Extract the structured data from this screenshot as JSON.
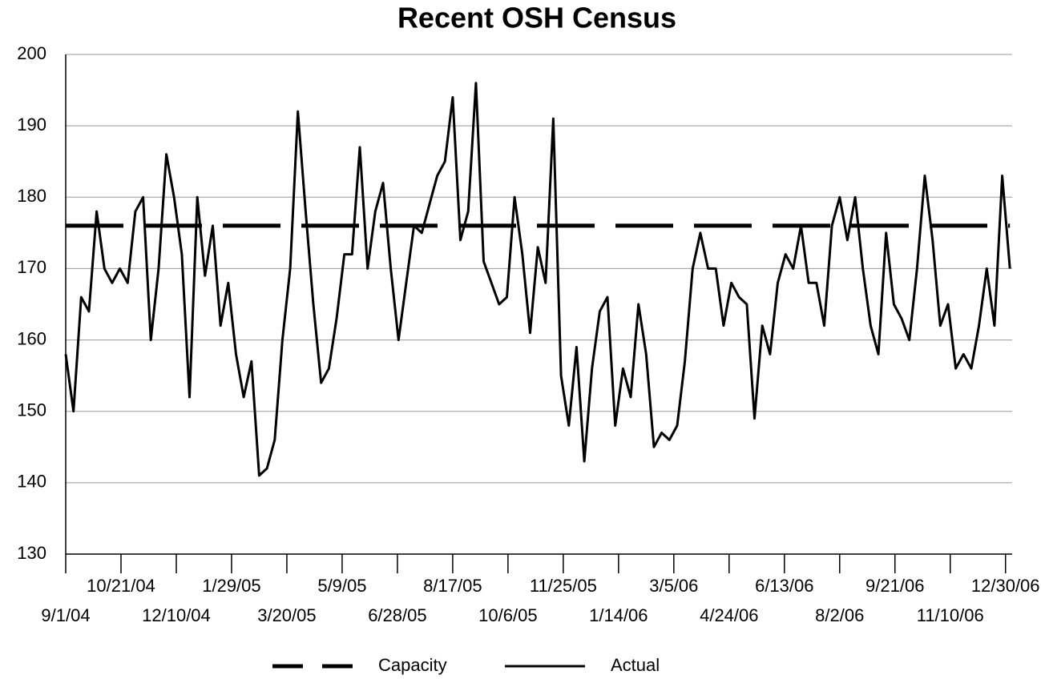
{
  "chart_data": {
    "type": "line",
    "title": "Recent OSH Census",
    "x": [
      "9/1/04",
      "9/8/04",
      "9/15/04",
      "9/22/04",
      "9/29/04",
      "10/6/04",
      "10/13/04",
      "10/20/04",
      "10/27/04",
      "11/3/04",
      "11/10/04",
      "11/17/04",
      "11/24/04",
      "12/1/04",
      "12/8/04",
      "12/15/04",
      "12/22/04",
      "12/29/04",
      "1/5/05",
      "1/12/05",
      "1/19/05",
      "1/26/05",
      "2/2/05",
      "2/9/05",
      "2/16/05",
      "2/23/05",
      "3/2/05",
      "3/9/05",
      "3/16/05",
      "3/23/05",
      "3/30/05",
      "4/6/05",
      "4/13/05",
      "4/20/05",
      "4/27/05",
      "5/4/05",
      "5/11/05",
      "5/18/05",
      "5/25/05",
      "6/1/05",
      "6/8/05",
      "6/15/05",
      "6/22/05",
      "6/29/05",
      "7/6/05",
      "7/13/05",
      "7/20/05",
      "7/27/05",
      "8/3/05",
      "8/10/05",
      "8/17/05",
      "8/24/05",
      "8/31/05",
      "9/7/05",
      "9/14/05",
      "9/21/05",
      "9/28/05",
      "10/5/05",
      "10/12/05",
      "10/19/05",
      "10/26/05",
      "11/2/05",
      "11/9/05",
      "11/16/05",
      "11/23/05",
      "11/30/05",
      "12/7/05",
      "12/14/05",
      "12/21/05",
      "12/28/05",
      "1/4/06",
      "1/11/06",
      "1/18/06",
      "1/25/06",
      "2/1/06",
      "2/8/06",
      "2/15/06",
      "2/22/06",
      "3/1/06",
      "3/8/06",
      "3/15/06",
      "3/22/06",
      "3/29/06",
      "4/5/06",
      "4/12/06",
      "4/19/06",
      "4/26/06",
      "5/3/06",
      "5/10/06",
      "5/17/06",
      "5/24/06",
      "5/31/06",
      "6/7/06",
      "6/14/06",
      "6/21/06",
      "6/28/06",
      "7/5/06",
      "7/12/06",
      "7/19/06",
      "7/26/06",
      "8/2/06",
      "8/9/06",
      "8/16/06",
      "8/23/06",
      "8/30/06",
      "9/6/06",
      "9/13/06",
      "9/20/06",
      "9/27/06",
      "10/4/06",
      "10/11/06",
      "10/18/06",
      "10/25/06",
      "11/1/06",
      "11/8/06",
      "11/15/06",
      "11/22/06",
      "11/29/06",
      "12/6/06",
      "12/13/06",
      "12/20/06",
      "12/27/06",
      "1/3/07"
    ],
    "series": [
      {
        "name": "Capacity",
        "color": "#000000",
        "dash": "dashed",
        "values": [
          176,
          176,
          176,
          176,
          176,
          176,
          176,
          176,
          176,
          176,
          176,
          176,
          176,
          176,
          176,
          176,
          176,
          176,
          176,
          176,
          176,
          176,
          176,
          176,
          176,
          176,
          176,
          176,
          176,
          176,
          176,
          176,
          176,
          176,
          176,
          176,
          176,
          176,
          176,
          176,
          176,
          176,
          176,
          176,
          176,
          176,
          176,
          176,
          176,
          176,
          176,
          176,
          176,
          176,
          176,
          176,
          176,
          176,
          176,
          176,
          176,
          176,
          176,
          176,
          176,
          176,
          176,
          176,
          176,
          176,
          176,
          176,
          176,
          176,
          176,
          176,
          176,
          176,
          176,
          176,
          176,
          176,
          176,
          176,
          176,
          176,
          176,
          176,
          176,
          176,
          176,
          176,
          176,
          176,
          176,
          176,
          176,
          176,
          176,
          176,
          176,
          176,
          176,
          176,
          176,
          176,
          176,
          176,
          176,
          176,
          176,
          176,
          176,
          176,
          176,
          176,
          176,
          176,
          176,
          176,
          176,
          176,
          176
        ]
      },
      {
        "name": "Actual",
        "color": "#000000",
        "dash": "solid",
        "values": [
          158,
          150,
          166,
          164,
          178,
          170,
          168,
          170,
          168,
          178,
          180,
          160,
          170,
          186,
          180,
          172,
          152,
          180,
          169,
          176,
          162,
          168,
          158,
          152,
          157,
          141,
          142,
          146,
          160,
          170,
          192,
          178,
          165,
          154,
          156,
          163,
          172,
          172,
          187,
          170,
          178,
          182,
          170,
          160,
          168,
          176,
          175,
          179,
          183,
          185,
          194,
          174,
          178,
          196,
          171,
          168,
          165,
          166,
          180,
          172,
          161,
          173,
          168,
          191,
          155,
          148,
          159,
          143,
          156,
          164,
          166,
          148,
          156,
          152,
          165,
          158,
          145,
          147,
          146,
          148,
          157,
          170,
          175,
          170,
          170,
          162,
          168,
          166,
          165,
          149,
          162,
          158,
          168,
          172,
          170,
          176,
          168,
          168,
          162,
          176,
          180,
          174,
          180,
          170,
          162,
          158,
          175,
          165,
          163,
          160,
          170,
          183,
          174,
          162,
          165,
          156,
          158,
          156,
          162,
          170,
          162,
          183,
          170
        ]
      }
    ],
    "xlim": [
      "9/1/04",
      "1/5/07"
    ],
    "xticks": [
      "9/1/04",
      "10/21/04",
      "12/10/04",
      "1/29/05",
      "3/20/05",
      "5/9/05",
      "6/28/05",
      "8/17/05",
      "10/6/05",
      "11/25/05",
      "1/14/06",
      "3/5/06",
      "4/24/06",
      "6/13/06",
      "8/2/06",
      "9/21/06",
      "11/10/06",
      "12/30/06"
    ],
    "ylim": [
      130,
      200
    ],
    "yticks": [
      130,
      140,
      150,
      160,
      170,
      180,
      190,
      200
    ],
    "grid": true,
    "legend": "bottom"
  }
}
